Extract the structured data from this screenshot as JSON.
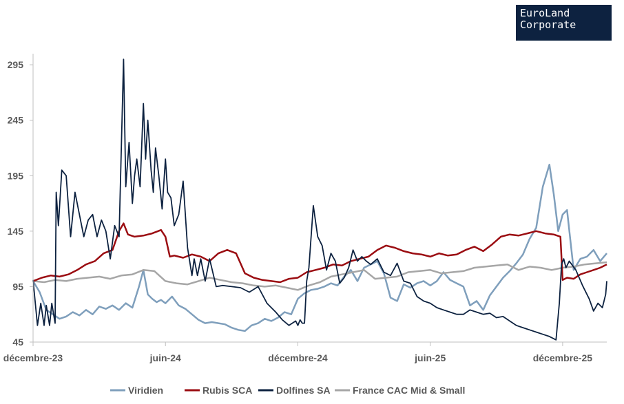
{
  "logo": {
    "line1": "EuroLand",
    "line2": "Corporate"
  },
  "chart_data": {
    "type": "line",
    "title": "",
    "xlabel": "",
    "ylabel": "",
    "ylim": [
      45,
      305
    ],
    "yticks": [
      45,
      95,
      145,
      195,
      245,
      295
    ],
    "xlim": [
      0,
      26
    ],
    "xticks": [
      {
        "pos": 0,
        "label": "décembre-23"
      },
      {
        "pos": 6,
        "label": "juin-24"
      },
      {
        "pos": 12,
        "label": "décembre-24"
      },
      {
        "pos": 18,
        "label": "juin-25"
      },
      {
        "pos": 24,
        "label": "décembre-25"
      }
    ],
    "x_unit": "months since décembre-23",
    "legend_position": "bottom",
    "series": [
      {
        "name": "Viridien",
        "color": "#7f9fbc",
        "x": [
          0,
          0.3,
          0.6,
          0.9,
          1.2,
          1.5,
          1.8,
          2.1,
          2.4,
          2.7,
          3,
          3.3,
          3.6,
          3.9,
          4.2,
          4.5,
          4.8,
          5,
          5.2,
          5.4,
          5.6,
          5.8,
          6,
          6.3,
          6.6,
          6.9,
          7.2,
          7.5,
          7.8,
          8.1,
          8.4,
          8.7,
          9,
          9.3,
          9.6,
          9.9,
          10.2,
          10.5,
          10.8,
          11.1,
          11.4,
          11.7,
          12,
          12.3,
          12.6,
          12.9,
          13.2,
          13.5,
          13.8,
          14.1,
          14.4,
          14.7,
          15,
          15.3,
          15.6,
          15.9,
          16.2,
          16.5,
          16.8,
          17.1,
          17.4,
          17.7,
          18,
          18.3,
          18.6,
          18.9,
          19.2,
          19.5,
          19.8,
          20.1,
          20.4,
          20.7,
          21,
          21.3,
          21.6,
          21.9,
          22.2,
          22.5,
          22.8,
          23.1,
          23.4,
          23.6,
          23.8,
          24,
          24.2,
          24.5,
          24.8,
          25.1,
          25.4,
          25.7,
          26
        ],
        "values": [
          100,
          90,
          74,
          70,
          66,
          68,
          72,
          69,
          74,
          70,
          77,
          75,
          78,
          74,
          80,
          76,
          95,
          110,
          88,
          84,
          81,
          83,
          80,
          86,
          78,
          75,
          70,
          65,
          62,
          63,
          62,
          61,
          58,
          56,
          55,
          60,
          62,
          66,
          64,
          67,
          72,
          70,
          84,
          89,
          92,
          93,
          95,
          98,
          96,
          104,
          110,
          100,
          112,
          115,
          118,
          107,
          85,
          82,
          97,
          94,
          98,
          100,
          96,
          100,
          108,
          101,
          98,
          95,
          78,
          82,
          74,
          87,
          95,
          103,
          109,
          116,
          124,
          138,
          148,
          185,
          205,
          178,
          145,
          160,
          164,
          110,
          120,
          122,
          128,
          118,
          125
        ]
      },
      {
        "name": "Rubis SCA",
        "color": "#9b0d12",
        "x": [
          0,
          0.4,
          0.8,
          1.2,
          1.6,
          2,
          2.4,
          2.8,
          3.2,
          3.6,
          3.9,
          4.1,
          4.3,
          4.6,
          5,
          5.4,
          5.8,
          6,
          6.2,
          6.4,
          6.8,
          7.2,
          7.6,
          8,
          8.4,
          8.8,
          9.2,
          9.6,
          10,
          10.4,
          10.8,
          11.2,
          11.6,
          12,
          12.4,
          12.8,
          13.2,
          13.6,
          14,
          14.4,
          14.8,
          15.2,
          15.6,
          16,
          16.4,
          16.8,
          17.2,
          17.6,
          18,
          18.4,
          18.8,
          19.2,
          19.6,
          20,
          20.4,
          20.8,
          21.2,
          21.6,
          22,
          22.4,
          22.8,
          23.2,
          23.6,
          23.9,
          24,
          24.2,
          24.5,
          24.8,
          25.1,
          25.4,
          25.7,
          26
        ],
        "values": [
          100,
          103,
          105,
          104,
          106,
          110,
          115,
          118,
          125,
          128,
          145,
          152,
          142,
          140,
          141,
          143,
          146,
          140,
          122,
          123,
          121,
          124,
          122,
          118,
          125,
          128,
          125,
          107,
          103,
          101,
          100,
          99,
          102,
          103,
          108,
          110,
          112,
          115,
          114,
          118,
          120,
          122,
          128,
          132,
          130,
          127,
          125,
          124,
          122,
          125,
          123,
          124,
          128,
          131,
          127,
          133,
          140,
          142,
          141,
          143,
          145,
          143,
          142,
          140,
          101,
          103,
          102,
          106,
          108,
          110,
          112,
          115
        ]
      },
      {
        "name": "Dolfines SA",
        "color": "#0d2240",
        "x": [
          0,
          0.2,
          0.35,
          0.5,
          0.6,
          0.75,
          0.85,
          1,
          1.05,
          1.15,
          1.3,
          1.5,
          1.7,
          1.9,
          2.1,
          2.3,
          2.5,
          2.7,
          2.9,
          3.1,
          3.3,
          3.5,
          3.7,
          3.9,
          4.1,
          4.2,
          4.35,
          4.5,
          4.6,
          4.7,
          4.85,
          5,
          5.1,
          5.2,
          5.35,
          5.45,
          5.55,
          5.7,
          5.85,
          6,
          6.1,
          6.25,
          6.4,
          6.6,
          6.8,
          7,
          7.2,
          7.3,
          7.45,
          7.6,
          7.8,
          8,
          8.3,
          8.6,
          9,
          9.4,
          9.8,
          10.2,
          10.6,
          11,
          11.3,
          11.6,
          11.9,
          12,
          12.1,
          12.2,
          12.3,
          12.4,
          12.5,
          12.7,
          12.9,
          13.1,
          13.3,
          13.5,
          13.7,
          13.9,
          14.1,
          14.3,
          14.5,
          14.7,
          14.9,
          15.1,
          15.3,
          15.6,
          15.9,
          16.2,
          16.5,
          16.8,
          17.1,
          17.4,
          17.7,
          18,
          18.3,
          18.6,
          18.9,
          19.2,
          19.5,
          19.8,
          20.1,
          20.4,
          20.7,
          21,
          21.3,
          21.6,
          21.9,
          22.2,
          22.5,
          22.8,
          23.1,
          23.4,
          23.7,
          23.85,
          23.95,
          24.05,
          24.15,
          24.3,
          24.6,
          24.9,
          25.2,
          25.4,
          25.6,
          25.8,
          25.95,
          26
        ],
        "values": [
          101,
          60,
          80,
          60,
          78,
          60,
          80,
          62,
          180,
          150,
          200,
          195,
          140,
          180,
          160,
          140,
          155,
          160,
          140,
          155,
          145,
          120,
          150,
          140,
          300,
          185,
          225,
          170,
          195,
          210,
          185,
          260,
          210,
          245,
          200,
          180,
          220,
          195,
          165,
          210,
          180,
          175,
          150,
          160,
          190,
          130,
          105,
          120,
          105,
          120,
          100,
          120,
          95,
          96,
          95,
          94,
          90,
          95,
          80,
          72,
          65,
          60,
          64,
          60,
          65,
          62,
          62,
          100,
          112,
          168,
          140,
          132,
          110,
          125,
          118,
          98,
          103,
          112,
          128,
          118,
          122,
          118,
          115,
          120,
          108,
          105,
          116,
          100,
          98,
          86,
          82,
          80,
          76,
          74,
          72,
          70,
          70,
          74,
          72,
          70,
          71,
          67,
          68,
          64,
          60,
          58,
          56,
          54,
          52,
          50,
          47,
          80,
          115,
          120,
          112,
          118,
          110,
          96,
          84,
          73,
          80,
          76,
          88,
          100
        ]
      },
      {
        "name": "France CAC Mid & Small",
        "color": "#a6a6a6",
        "x": [
          0,
          0.5,
          1,
          1.5,
          2,
          2.5,
          3,
          3.5,
          4,
          4.5,
          5,
          5.5,
          6,
          6.5,
          7,
          7.5,
          8,
          8.5,
          9,
          9.5,
          10,
          10.5,
          11,
          11.5,
          12,
          12.5,
          13,
          13.5,
          14,
          14.5,
          15,
          15.5,
          16,
          16.5,
          17,
          17.5,
          18,
          18.5,
          19,
          19.5,
          20,
          20.5,
          21,
          21.5,
          22,
          22.5,
          23,
          23.5,
          24,
          24.5,
          25,
          25.5,
          26
        ],
        "values": [
          100,
          99,
          101,
          100,
          102,
          103,
          104,
          102,
          105,
          106,
          110,
          109,
          100,
          98,
          97,
          100,
          103,
          101,
          99,
          98,
          96,
          95,
          96,
          94,
          92,
          96,
          99,
          104,
          106,
          108,
          110,
          102,
          103,
          104,
          108,
          109,
          110,
          107,
          108,
          109,
          112,
          113,
          114,
          115,
          110,
          113,
          112,
          110,
          112,
          113,
          115,
          116,
          117
        ]
      }
    ]
  }
}
